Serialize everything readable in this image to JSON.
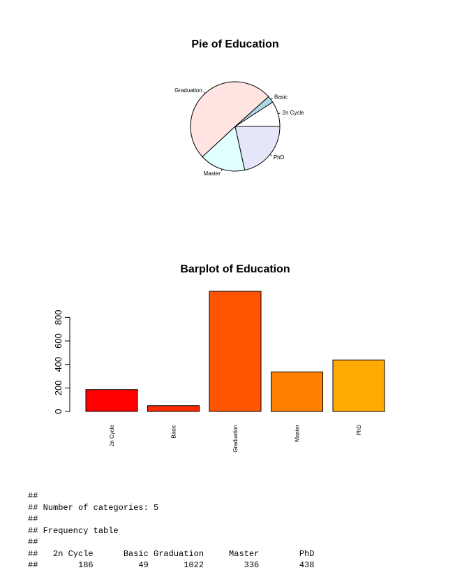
{
  "chart_data": [
    {
      "type": "pie",
      "title": "Pie of Education",
      "categories": [
        "2n Cycle",
        "Basic",
        "Graduation",
        "Master",
        "PhD"
      ],
      "values": [
        186,
        49,
        1022,
        336,
        438
      ],
      "colors": [
        "#ffffff",
        "#add8e6",
        "#ffe4e1",
        "#e0ffff",
        "#e6e6fa"
      ]
    },
    {
      "type": "bar",
      "title": "Barplot of Education",
      "categories": [
        "2n Cycle",
        "Basic",
        "Graduation",
        "Master",
        "PhD"
      ],
      "values": [
        186,
        49,
        1022,
        336,
        438
      ],
      "colors": [
        "#ff0000",
        "#ff2a00",
        "#ff5500",
        "#ff8000",
        "#ffaa00"
      ],
      "xlabel": "",
      "ylabel": "",
      "ylim": [
        0,
        1022
      ],
      "yticks": [
        0,
        200,
        400,
        600,
        800
      ]
    }
  ],
  "console": {
    "lines": [
      "##",
      "## Number of categories: 5",
      "##",
      "## Frequency table",
      "##",
      "##   2n Cycle      Basic Graduation     Master        PhD",
      "##        186         49       1022        336        438"
    ]
  }
}
